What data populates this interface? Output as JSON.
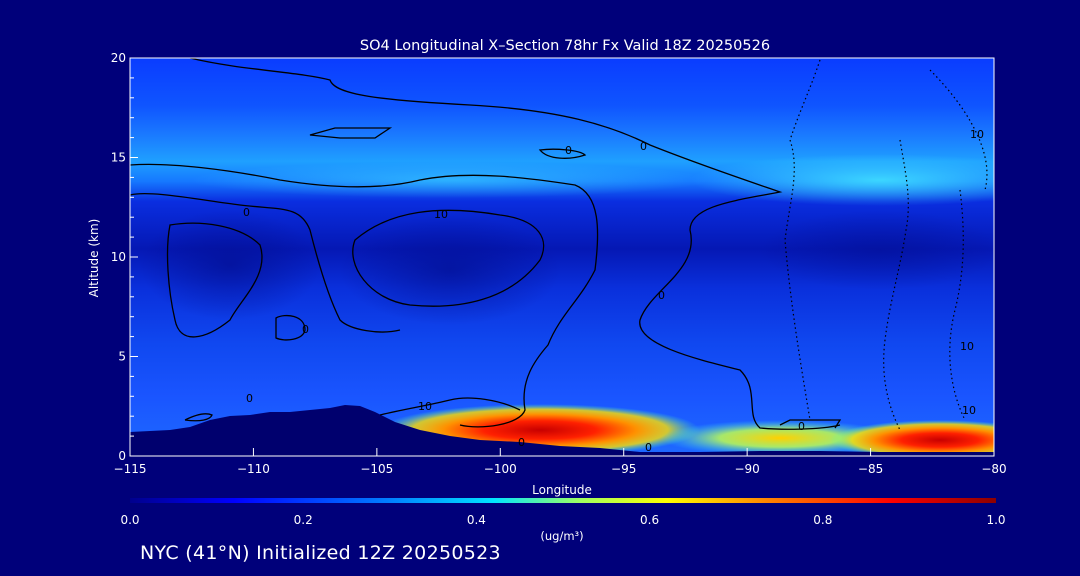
{
  "chart_data": {
    "type": "heatmap",
    "title": "SO4 Longitudinal X–Section 78hr  Fx Valid 18Z 20250526",
    "xlabel": "Longitude",
    "ylabel": "Altitude (km)",
    "xlim": [
      -115,
      -80
    ],
    "ylim": [
      0,
      20
    ],
    "x_ticks": [
      -115,
      -110,
      -105,
      -100,
      -95,
      -90,
      -85,
      -80
    ],
    "x_tick_labels": [
      "−115",
      "−110",
      "−105",
      "−100",
      "−95",
      "−90",
      "−85",
      "−80"
    ],
    "y_ticks": [
      0,
      5,
      10,
      15,
      20
    ],
    "y_tick_labels": [
      "0",
      "5",
      "10",
      "15",
      "20"
    ],
    "colorbar": {
      "min": 0.0,
      "max": 1.0,
      "ticks": [
        0.0,
        0.2,
        0.4,
        0.6,
        0.8,
        1.0
      ],
      "tick_labels": [
        "0.0",
        "0.2",
        "0.4",
        "0.6",
        "0.8",
        "1.0"
      ],
      "units_label": "(ug/m³)",
      "colors": [
        "#00008c",
        "#0000ff",
        "#0080ff",
        "#00e5ff",
        "#a0ff60",
        "#ffff00",
        "#ff8000",
        "#ff0000",
        "#8c0000"
      ]
    },
    "contour_labels": [
      "0",
      "0",
      "0",
      "0",
      "0",
      "10",
      "10",
      "0",
      "0",
      "0",
      "10",
      "10",
      "0",
      "10"
    ],
    "footer": "NYC (41°N) Initialized 12Z 20250523"
  },
  "colors": {
    "background": "#00007a",
    "text": "#ffffff",
    "contour": "#000000",
    "terrain": "#00006e"
  }
}
